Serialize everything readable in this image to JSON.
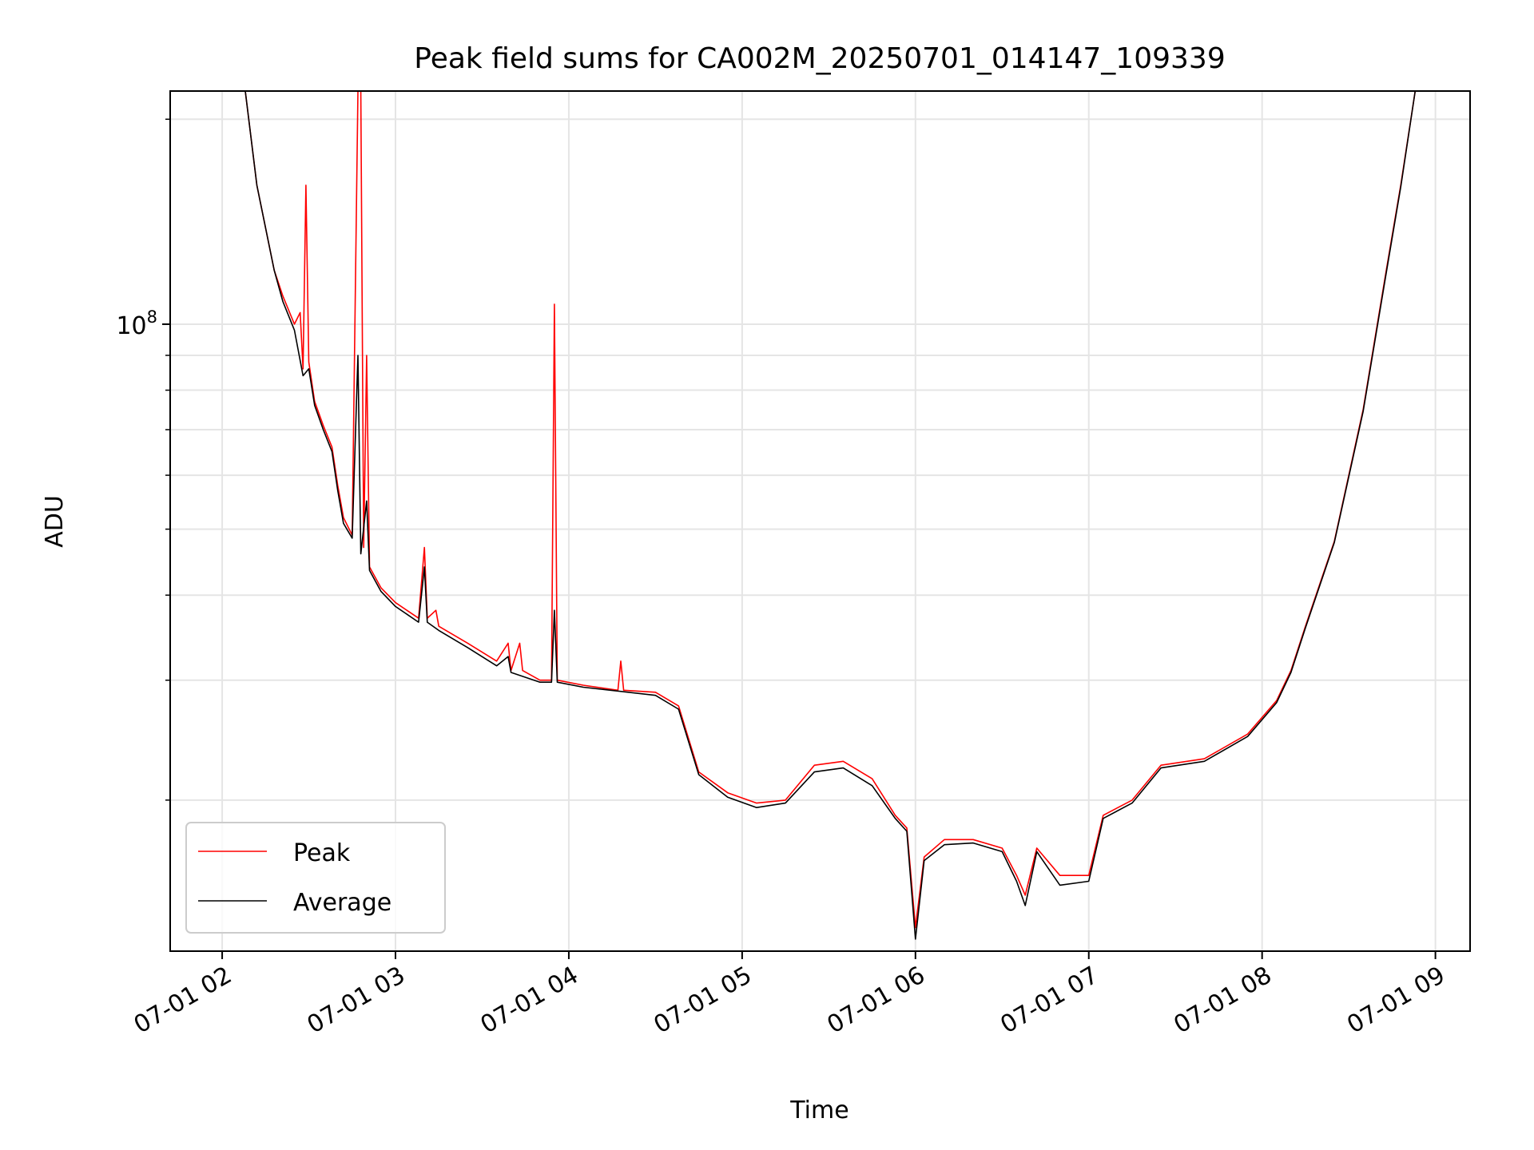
{
  "chart_data": {
    "type": "line",
    "title": "Peak field sums for CA002M_20250701_014147_109339",
    "xlabel": "Time",
    "ylabel": "ADU",
    "x_axis": {
      "type": "time",
      "range": [
        "2025-07-01 01:42",
        "2025-07-01 09:12"
      ],
      "ticks": [
        {
          "value": "2025-07-01 02:00",
          "label": "07-01 02"
        },
        {
          "value": "2025-07-01 03:00",
          "label": "07-01 03"
        },
        {
          "value": "2025-07-01 04:00",
          "label": "07-01 04"
        },
        {
          "value": "2025-07-01 05:00",
          "label": "07-01 05"
        },
        {
          "value": "2025-07-01 06:00",
          "label": "07-01 06"
        },
        {
          "value": "2025-07-01 07:00",
          "label": "07-01 07"
        },
        {
          "value": "2025-07-01 08:00",
          "label": "07-01 08"
        },
        {
          "value": "2025-07-01 09:00",
          "label": "07-01 09"
        }
      ]
    },
    "y_axis": {
      "scale": "log",
      "range": [
        12000000,
        220000000
      ],
      "major_ticks": [
        {
          "value": 100000000,
          "label": "10^8"
        }
      ],
      "minor_ticks": [
        20000000,
        30000000,
        40000000,
        50000000,
        60000000,
        70000000,
        80000000,
        90000000,
        200000000
      ]
    },
    "grid": true,
    "legend": {
      "placement": "lower-left",
      "entries": [
        "Peak",
        "Average"
      ]
    },
    "colors": {
      "Peak": "#ff0000",
      "Average": "#000000"
    },
    "series": [
      {
        "name": "Peak",
        "color": "#ff0000",
        "points": [
          [
            "01:42",
            220000000
          ],
          [
            "02:08",
            220000000
          ],
          [
            "02:12",
            160000000
          ],
          [
            "02:18",
            120000000
          ],
          [
            "02:21",
            110000000
          ],
          [
            "02:25",
            100000000
          ],
          [
            "02:27",
            104000000
          ],
          [
            "02:28",
            86000000
          ],
          [
            "02:29",
            160000000
          ],
          [
            "02:30",
            88000000
          ],
          [
            "02:32",
            77000000
          ],
          [
            "02:35",
            71000000
          ],
          [
            "02:38",
            66000000
          ],
          [
            "02:40",
            58000000
          ],
          [
            "02:42",
            52000000
          ],
          [
            "02:45",
            49000000
          ],
          [
            "02:47",
            220000000
          ],
          [
            "02:48",
            220000000
          ],
          [
            "02:49",
            47000000
          ],
          [
            "02:50",
            90000000
          ],
          [
            "02:51",
            44000000
          ],
          [
            "02:55",
            41000000
          ],
          [
            "03:00",
            39000000
          ],
          [
            "03:08",
            37000000
          ],
          [
            "03:10",
            47000000
          ],
          [
            "03:11",
            37000000
          ],
          [
            "03:14",
            38000000
          ],
          [
            "03:15",
            36000000
          ],
          [
            "03:25",
            34000000
          ],
          [
            "03:35",
            32000000
          ],
          [
            "03:39",
            34000000
          ],
          [
            "03:40",
            31000000
          ],
          [
            "03:43",
            34000000
          ],
          [
            "03:44",
            31000000
          ],
          [
            "03:50",
            30000000
          ],
          [
            "03:54",
            30000000
          ],
          [
            "03:55",
            107000000
          ],
          [
            "03:56",
            30000000
          ],
          [
            "04:05",
            29500000
          ],
          [
            "04:17",
            29000000
          ],
          [
            "04:18",
            32000000
          ],
          [
            "04:19",
            29000000
          ],
          [
            "04:30",
            28800000
          ],
          [
            "04:38",
            27500000
          ],
          [
            "04:45",
            22000000
          ],
          [
            "04:55",
            20500000
          ],
          [
            "05:05",
            19800000
          ],
          [
            "05:15",
            20000000
          ],
          [
            "05:25",
            22500000
          ],
          [
            "05:35",
            22800000
          ],
          [
            "05:45",
            21500000
          ],
          [
            "05:53",
            19000000
          ],
          [
            "05:57",
            18200000
          ],
          [
            "06:00",
            13000000
          ],
          [
            "06:03",
            16500000
          ],
          [
            "06:10",
            17500000
          ],
          [
            "06:20",
            17500000
          ],
          [
            "06:30",
            17000000
          ],
          [
            "06:35",
            15500000
          ],
          [
            "06:38",
            14500000
          ],
          [
            "06:42",
            17000000
          ],
          [
            "06:50",
            15500000
          ],
          [
            "07:00",
            15500000
          ],
          [
            "07:05",
            19000000
          ],
          [
            "07:15",
            20000000
          ],
          [
            "07:25",
            22500000
          ],
          [
            "07:40",
            23000000
          ],
          [
            "07:55",
            25000000
          ],
          [
            "08:05",
            28000000
          ],
          [
            "08:10",
            31000000
          ],
          [
            "08:15",
            36000000
          ],
          [
            "08:25",
            48000000
          ],
          [
            "08:35",
            75000000
          ],
          [
            "08:43",
            120000000
          ],
          [
            "08:48",
            160000000
          ],
          [
            "08:53",
            220000000
          ],
          [
            "09:12",
            220000000
          ]
        ]
      },
      {
        "name": "Average",
        "color": "#000000",
        "points": [
          [
            "01:42",
            220000000
          ],
          [
            "02:08",
            220000000
          ],
          [
            "02:12",
            160000000
          ],
          [
            "02:18",
            120000000
          ],
          [
            "02:21",
            108000000
          ],
          [
            "02:25",
            98000000
          ],
          [
            "02:28",
            84000000
          ],
          [
            "02:30",
            86000000
          ],
          [
            "02:32",
            76000000
          ],
          [
            "02:35",
            70000000
          ],
          [
            "02:38",
            65000000
          ],
          [
            "02:40",
            57000000
          ],
          [
            "02:42",
            51000000
          ],
          [
            "02:45",
            48500000
          ],
          [
            "02:47",
            90000000
          ],
          [
            "02:48",
            46000000
          ],
          [
            "02:50",
            55000000
          ],
          [
            "02:51",
            43500000
          ],
          [
            "02:55",
            40500000
          ],
          [
            "03:00",
            38500000
          ],
          [
            "03:08",
            36500000
          ],
          [
            "03:10",
            44000000
          ],
          [
            "03:11",
            36500000
          ],
          [
            "03:15",
            35500000
          ],
          [
            "03:25",
            33500000
          ],
          [
            "03:35",
            31500000
          ],
          [
            "03:39",
            32500000
          ],
          [
            "03:40",
            30800000
          ],
          [
            "03:50",
            29800000
          ],
          [
            "03:54",
            29800000
          ],
          [
            "03:55",
            38000000
          ],
          [
            "03:56",
            29800000
          ],
          [
            "04:05",
            29300000
          ],
          [
            "04:30",
            28500000
          ],
          [
            "04:38",
            27200000
          ],
          [
            "04:45",
            21800000
          ],
          [
            "04:55",
            20200000
          ],
          [
            "05:05",
            19500000
          ],
          [
            "05:15",
            19800000
          ],
          [
            "05:25",
            22000000
          ],
          [
            "05:35",
            22300000
          ],
          [
            "05:45",
            21000000
          ],
          [
            "05:53",
            18800000
          ],
          [
            "05:57",
            18000000
          ],
          [
            "06:00",
            12500000
          ],
          [
            "06:03",
            16300000
          ],
          [
            "06:10",
            17200000
          ],
          [
            "06:20",
            17300000
          ],
          [
            "06:30",
            16800000
          ],
          [
            "06:35",
            15200000
          ],
          [
            "06:38",
            14000000
          ],
          [
            "06:42",
            16800000
          ],
          [
            "06:50",
            15000000
          ],
          [
            "07:00",
            15200000
          ],
          [
            "07:05",
            18800000
          ],
          [
            "07:15",
            19800000
          ],
          [
            "07:25",
            22300000
          ],
          [
            "07:40",
            22800000
          ],
          [
            "07:55",
            24800000
          ],
          [
            "08:05",
            27800000
          ],
          [
            "08:10",
            30800000
          ],
          [
            "08:15",
            35800000
          ],
          [
            "08:25",
            47800000
          ],
          [
            "08:35",
            74500000
          ],
          [
            "08:43",
            119000000
          ],
          [
            "08:48",
            159000000
          ],
          [
            "08:53",
            220000000
          ],
          [
            "09:12",
            220000000
          ]
        ]
      }
    ]
  }
}
